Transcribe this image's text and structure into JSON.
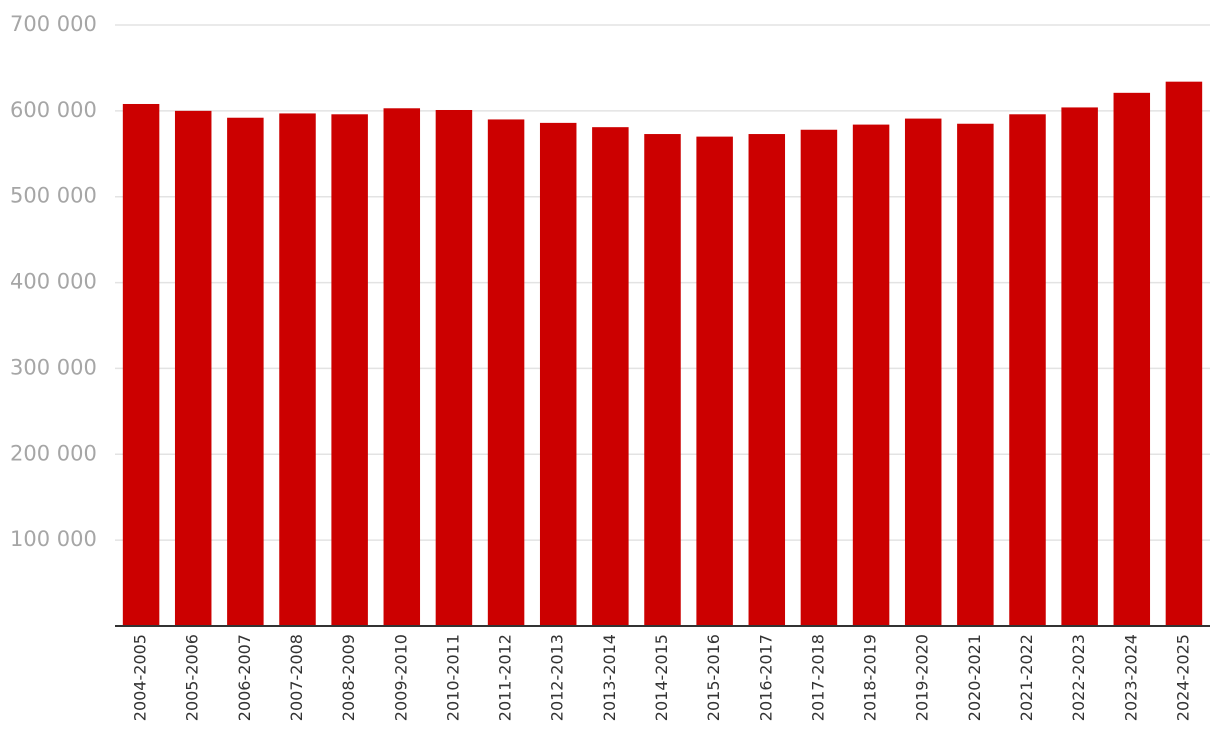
{
  "chart_data": {
    "type": "bar",
    "categories": [
      "2004-2005",
      "2005-2006",
      "2006-2007",
      "2007-2008",
      "2008-2009",
      "2009-2010",
      "2010-2011",
      "2011-2012",
      "2012-2013",
      "2013-2014",
      "2014-2015",
      "2015-2016",
      "2016-2017",
      "2017-2018",
      "2018-2019",
      "2019-2020",
      "2020-2021",
      "2021-2022",
      "2022-2023",
      "2023-2024",
      "2024-2025"
    ],
    "values": [
      608000,
      600000,
      592000,
      597000,
      596000,
      603000,
      601000,
      590000,
      586000,
      581000,
      573000,
      570000,
      573000,
      578000,
      584000,
      591000,
      585000,
      596000,
      604000,
      621000,
      634000
    ],
    "color": "#cc0000",
    "ylim": [
      0,
      700000
    ],
    "yticks": [
      {
        "value": 100000,
        "label": "100 000"
      },
      {
        "value": 200000,
        "label": "200 000"
      },
      {
        "value": 300000,
        "label": "300 000"
      },
      {
        "value": 400000,
        "label": "400 000"
      },
      {
        "value": 500000,
        "label": "500 000"
      },
      {
        "value": 600000,
        "label": "600 000"
      },
      {
        "value": 700000,
        "label": "700 000"
      }
    ],
    "grid": true
  }
}
